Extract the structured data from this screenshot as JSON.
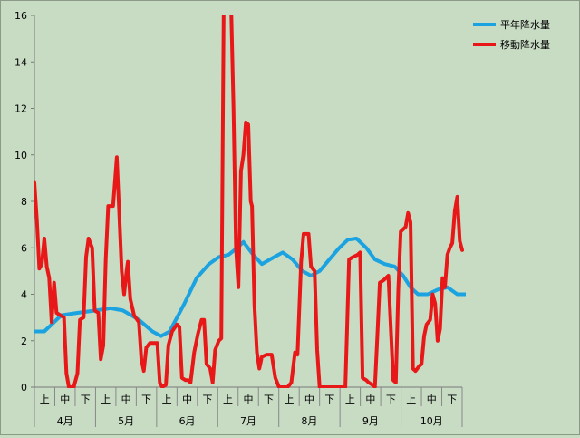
{
  "chart_data": {
    "type": "line",
    "title": "",
    "xlabel": "",
    "ylabel": "",
    "ylim": [
      0,
      16
    ],
    "y_ticks": [
      "0",
      "2",
      "4",
      "6",
      "8",
      "10",
      "12",
      "14",
      "16"
    ],
    "grid": false,
    "legend_position": "top-right",
    "months": [
      "4月",
      "5月",
      "6月",
      "7月",
      "8月",
      "9月",
      "10月"
    ],
    "dekads": [
      "上",
      "中",
      "下"
    ],
    "x_unit": "day index from 4月1日 (0–212)",
    "series": [
      {
        "name": "平年降水量",
        "color": "#1aa3e0",
        "points": [
          [
            0,
            2.4
          ],
          [
            8,
            2.4
          ],
          [
            14,
            2.7
          ],
          [
            22,
            3.1
          ],
          [
            35,
            3.2
          ],
          [
            50,
            3.3
          ],
          [
            62,
            3.4
          ],
          [
            72,
            3.3
          ],
          [
            85,
            2.9
          ],
          [
            96,
            2.4
          ],
          [
            103,
            2.2
          ],
          [
            110,
            2.4
          ],
          [
            122,
            3.6
          ],
          [
            132,
            4.7
          ],
          [
            142,
            5.3
          ],
          [
            150,
            5.6
          ],
          [
            158,
            5.7
          ],
          [
            165,
            6.0
          ],
          [
            170,
            6.25
          ],
          [
            178,
            5.7
          ],
          [
            185,
            5.3
          ],
          [
            195,
            5.6
          ],
          [
            202,
            5.8
          ],
          [
            210,
            5.5
          ],
          [
            218,
            5.0
          ],
          [
            225,
            4.8
          ],
          [
            232,
            5.0
          ],
          [
            240,
            5.5
          ],
          [
            248,
            6.0
          ],
          [
            255,
            6.35
          ],
          [
            262,
            6.4
          ],
          [
            270,
            6.0
          ],
          [
            277,
            5.5
          ],
          [
            285,
            5.3
          ],
          [
            293,
            5.2
          ],
          [
            300,
            4.8
          ],
          [
            306,
            4.3
          ],
          [
            312,
            4.0
          ],
          [
            320,
            4.0
          ],
          [
            328,
            4.2
          ],
          [
            336,
            4.3
          ],
          [
            344,
            4.0
          ],
          [
            352,
            4.0
          ],
          [
            358,
            4.3
          ],
          [
            365,
            4.8
          ],
          [
            372,
            5.0
          ]
        ]
      },
      {
        "name": "移動降水量",
        "color": "#e81818",
        "points": [
          [
            0,
            8.8
          ],
          [
            2,
            7.2
          ],
          [
            4,
            5.1
          ],
          [
            6,
            5.3
          ],
          [
            8,
            6.4
          ],
          [
            10,
            5.2
          ],
          [
            12,
            4.7
          ],
          [
            14,
            2.8
          ],
          [
            16,
            4.5
          ],
          [
            18,
            3.2
          ],
          [
            21,
            3.1
          ],
          [
            24,
            3.0
          ],
          [
            26,
            0.6
          ],
          [
            28,
            0.0
          ],
          [
            32,
            0.0
          ],
          [
            35,
            0.6
          ],
          [
            37,
            2.9
          ],
          [
            40,
            3.0
          ],
          [
            42,
            5.6
          ],
          [
            44,
            6.4
          ],
          [
            47,
            6.0
          ],
          [
            49,
            3.3
          ],
          [
            52,
            3.2
          ],
          [
            54,
            1.2
          ],
          [
            56,
            1.8
          ],
          [
            58,
            5.5
          ],
          [
            60,
            7.8
          ],
          [
            64,
            7.8
          ],
          [
            67,
            9.9
          ],
          [
            69,
            7.5
          ],
          [
            71,
            5.0
          ],
          [
            73,
            4.0
          ],
          [
            75,
            5.0
          ],
          [
            76,
            5.4
          ],
          [
            78,
            3.8
          ],
          [
            81,
            3.1
          ],
          [
            85,
            2.8
          ],
          [
            87,
            1.2
          ],
          [
            89,
            0.7
          ],
          [
            91,
            1.7
          ],
          [
            94,
            1.9
          ],
          [
            100,
            1.9
          ],
          [
            102,
            0.2
          ],
          [
            104,
            0.0
          ],
          [
            107,
            0.1
          ],
          [
            109,
            1.8
          ],
          [
            112,
            2.4
          ],
          [
            116,
            2.7
          ],
          [
            118,
            2.6
          ],
          [
            120,
            0.4
          ],
          [
            123,
            0.3
          ],
          [
            125,
            0.3
          ],
          [
            127,
            0.2
          ],
          [
            130,
            1.5
          ],
          [
            133,
            2.3
          ],
          [
            136,
            2.9
          ],
          [
            138,
            2.9
          ],
          [
            140,
            1.0
          ],
          [
            143,
            0.8
          ],
          [
            145,
            0.2
          ],
          [
            147,
            1.6
          ],
          [
            150,
            2.0
          ],
          [
            152,
            2.1
          ],
          [
            154,
            16.5
          ],
          [
            160,
            16.5
          ],
          [
            162,
            12.0
          ],
          [
            164,
            6.0
          ],
          [
            166,
            4.3
          ],
          [
            168,
            9.3
          ],
          [
            170,
            10.0
          ],
          [
            172,
            11.4
          ],
          [
            174,
            11.3
          ],
          [
            176,
            8.0
          ],
          [
            177,
            7.8
          ],
          [
            179,
            3.5
          ],
          [
            181,
            1.5
          ],
          [
            183,
            0.8
          ],
          [
            185,
            1.3
          ],
          [
            189,
            1.4
          ],
          [
            193,
            1.4
          ],
          [
            196,
            0.4
          ],
          [
            199,
            0.0
          ],
          [
            206,
            0.0
          ],
          [
            209,
            0.2
          ],
          [
            212,
            1.5
          ],
          [
            214,
            1.4
          ],
          [
            217,
            5.4
          ],
          [
            219,
            6.6
          ],
          [
            223,
            6.6
          ],
          [
            225,
            5.2
          ],
          [
            228,
            5.0
          ],
          [
            230,
            1.6
          ],
          [
            232,
            0.0
          ],
          [
            245,
            0.0
          ],
          [
            250,
            0.0
          ],
          [
            253,
            0.0
          ],
          [
            256,
            5.5
          ],
          [
            259,
            5.6
          ],
          [
            263,
            5.7
          ],
          [
            265,
            5.8
          ],
          [
            267,
            0.4
          ],
          [
            270,
            0.3
          ],
          [
            272,
            0.2
          ],
          [
            275,
            0.1
          ],
          [
            277,
            0.0
          ],
          [
            279,
            2.2
          ],
          [
            281,
            4.5
          ],
          [
            284,
            4.6
          ],
          [
            288,
            4.8
          ],
          [
            290,
            2.5
          ],
          [
            292,
            0.3
          ],
          [
            294,
            0.2
          ],
          [
            296,
            4.2
          ],
          [
            298,
            6.7
          ],
          [
            302,
            6.9
          ],
          [
            304,
            7.5
          ],
          [
            306,
            7.1
          ],
          [
            308,
            0.8
          ],
          [
            310,
            0.7
          ],
          [
            313,
            0.9
          ],
          [
            315,
            1.0
          ],
          [
            317,
            2.2
          ],
          [
            319,
            2.7
          ],
          [
            322,
            2.9
          ],
          [
            324,
            4.0
          ],
          [
            326,
            3.6
          ],
          [
            328,
            2.0
          ],
          [
            330,
            2.5
          ],
          [
            332,
            4.7
          ],
          [
            334,
            4.3
          ],
          [
            336,
            5.7
          ],
          [
            338,
            6.0
          ],
          [
            340,
            6.2
          ],
          [
            342,
            7.6
          ],
          [
            344,
            8.2
          ],
          [
            346,
            6.3
          ],
          [
            348,
            5.9
          ]
        ]
      }
    ]
  }
}
